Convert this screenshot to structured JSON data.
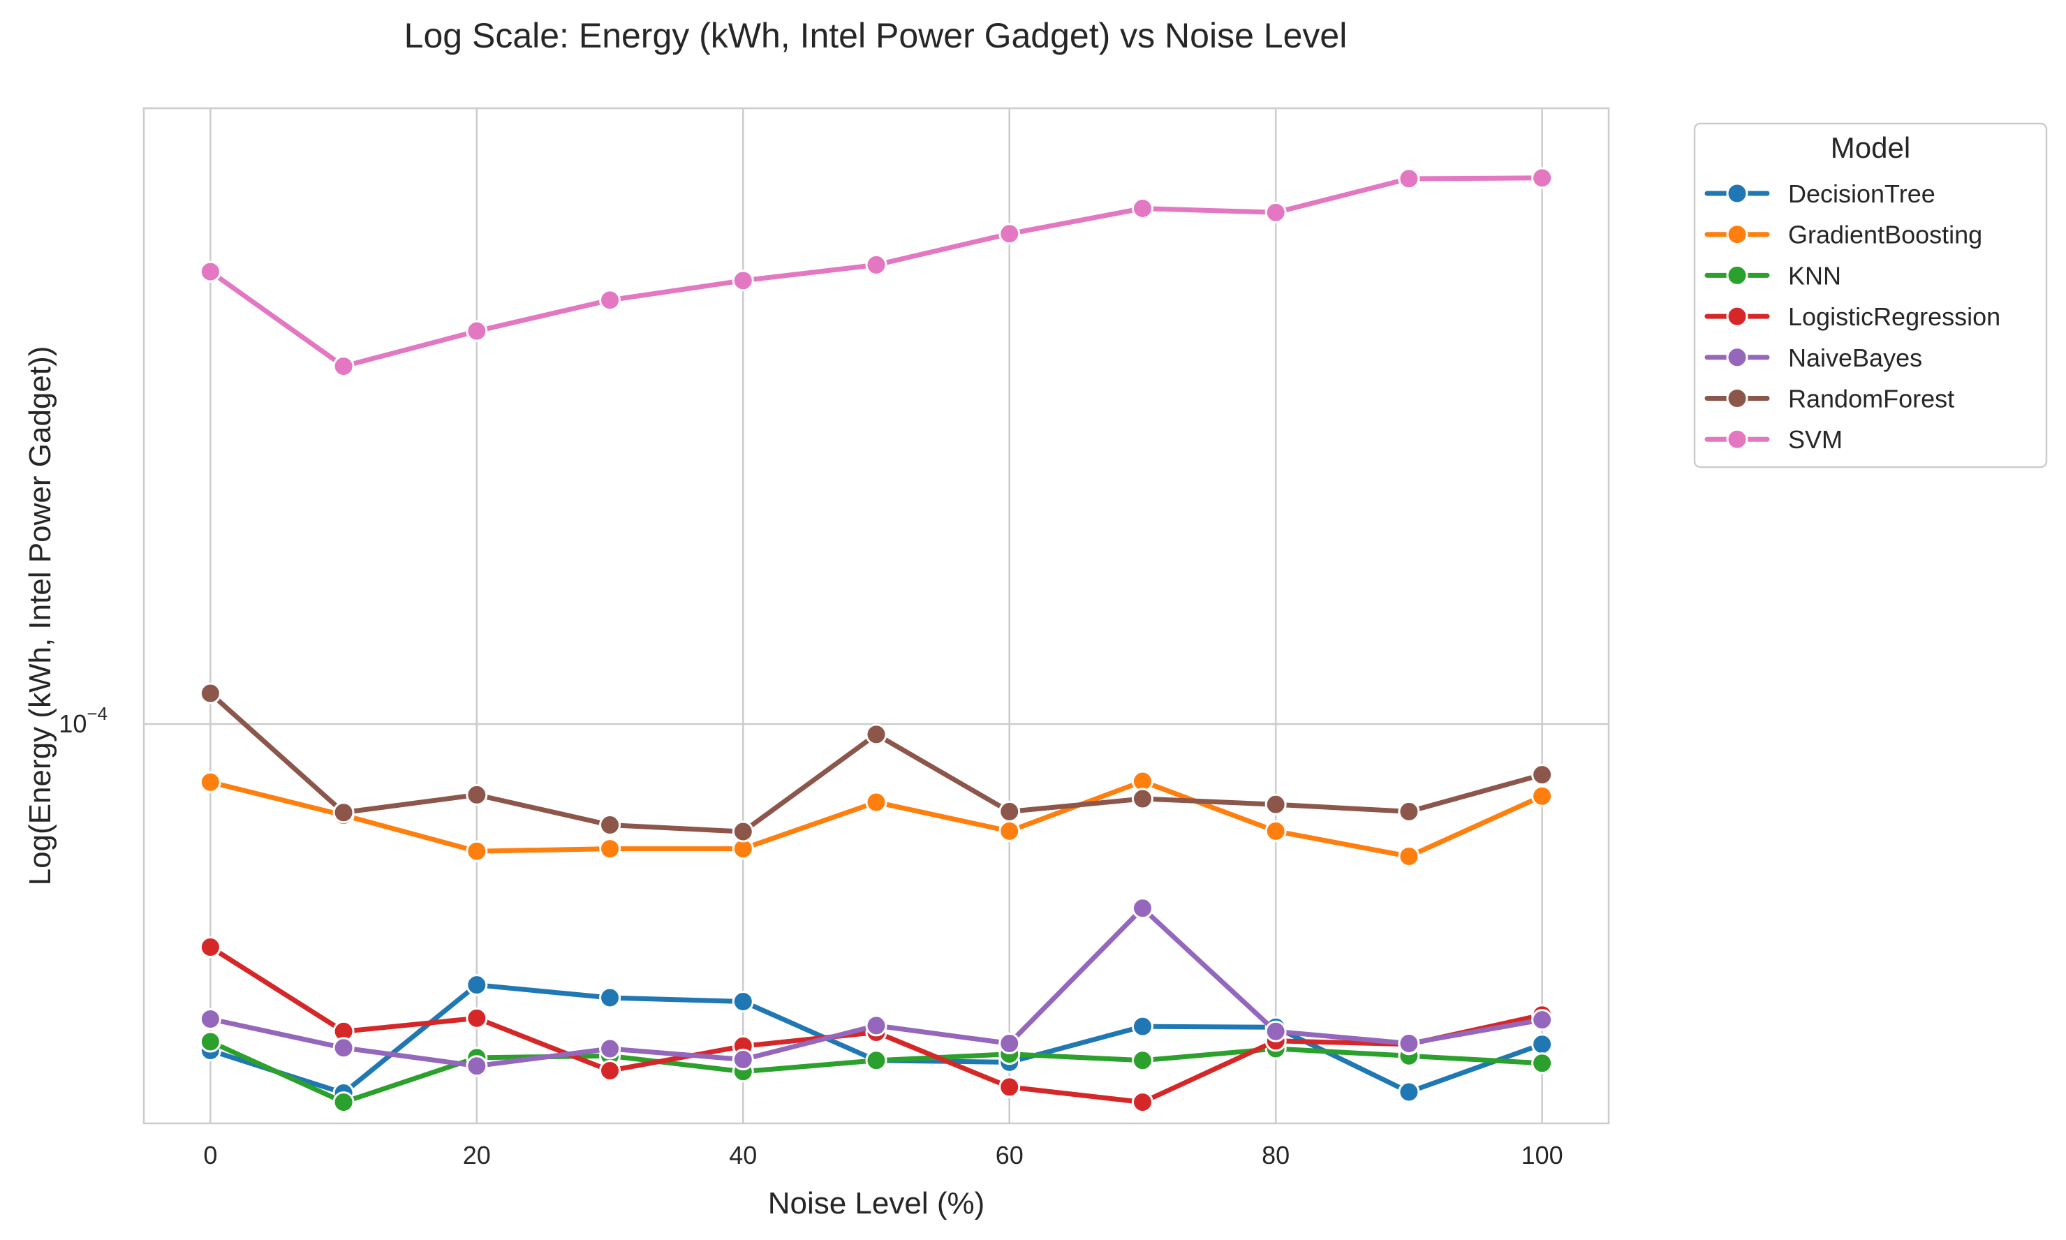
{
  "chart_data": {
    "type": "line",
    "title": "Log Scale: Energy (kWh, Intel Power Gadget) vs Noise Level",
    "xlabel": "Noise Level (%)",
    "ylabel": "Log(Energy (kWh, Intel Power Gadget))",
    "y_scale": "log",
    "xlim": [
      -5,
      105
    ],
    "ylim": [
      3.22e-05,
      0.000574
    ],
    "x_ticks": [
      {
        "value": 0,
        "label": "0"
      },
      {
        "value": 20,
        "label": "20"
      },
      {
        "value": 40,
        "label": "40"
      },
      {
        "value": 60,
        "label": "60"
      },
      {
        "value": 80,
        "label": "80"
      },
      {
        "value": 100,
        "label": "100"
      }
    ],
    "y_ticks": [
      {
        "value": 0.0001,
        "base": "10",
        "exponent": "−4"
      }
    ],
    "grid": true,
    "legend": {
      "title": "Model",
      "position": "outside-top-right"
    },
    "x": [
      0,
      10,
      20,
      30,
      40,
      50,
      60,
      70,
      80,
      90,
      100
    ],
    "series": [
      {
        "name": "DecisionTree",
        "color": "#1f77b4",
        "values": [
          3.96e-05,
          3.51e-05,
          4.77e-05,
          4.6e-05,
          4.55e-05,
          3.85e-05,
          3.83e-05,
          4.24e-05,
          4.23e-05,
          3.52e-05,
          4.03e-05
        ]
      },
      {
        "name": "GradientBoosting",
        "color": "#ff7f0e",
        "values": [
          8.48e-05,
          7.72e-05,
          6.97e-05,
          7.02e-05,
          7.02e-05,
          8.01e-05,
          7.38e-05,
          8.5e-05,
          7.38e-05,
          6.87e-05,
          8.15e-05
        ]
      },
      {
        "name": "KNN",
        "color": "#2ca02c",
        "values": [
          4.06e-05,
          3.42e-05,
          3.88e-05,
          3.9e-05,
          3.73e-05,
          3.85e-05,
          3.92e-05,
          3.85e-05,
          3.98e-05,
          3.9e-05,
          3.82e-05
        ]
      },
      {
        "name": "LogisticRegression",
        "color": "#d62728",
        "values": [
          5.31e-05,
          4.18e-05,
          4.34e-05,
          3.74e-05,
          4.01e-05,
          4.17e-05,
          3.57e-05,
          3.42e-05,
          4.07e-05,
          4.03e-05,
          4.38e-05
        ]
      },
      {
        "name": "NaiveBayes",
        "color": "#9467bd",
        "values": [
          4.33e-05,
          3.99e-05,
          3.79e-05,
          3.98e-05,
          3.86e-05,
          4.25e-05,
          4.04e-05,
          5.93e-05,
          4.18e-05,
          4.04e-05,
          4.32e-05
        ]
      },
      {
        "name": "RandomForest",
        "color": "#8c564b",
        "values": [
          0.0001091,
          7.78e-05,
          8.18e-05,
          7.51e-05,
          7.37e-05,
          9.71e-05,
          7.8e-05,
          8.09e-05,
          7.96e-05,
          7.8e-05,
          8.66e-05
        ]
      },
      {
        "name": "SVM",
        "color": "#e377c2",
        "values": [
          0.000361,
          0.000276,
          0.000305,
          0.000333,
          0.000352,
          0.000368,
          0.000402,
          0.000432,
          0.000427,
          0.00047,
          0.000471
        ]
      }
    ]
  }
}
